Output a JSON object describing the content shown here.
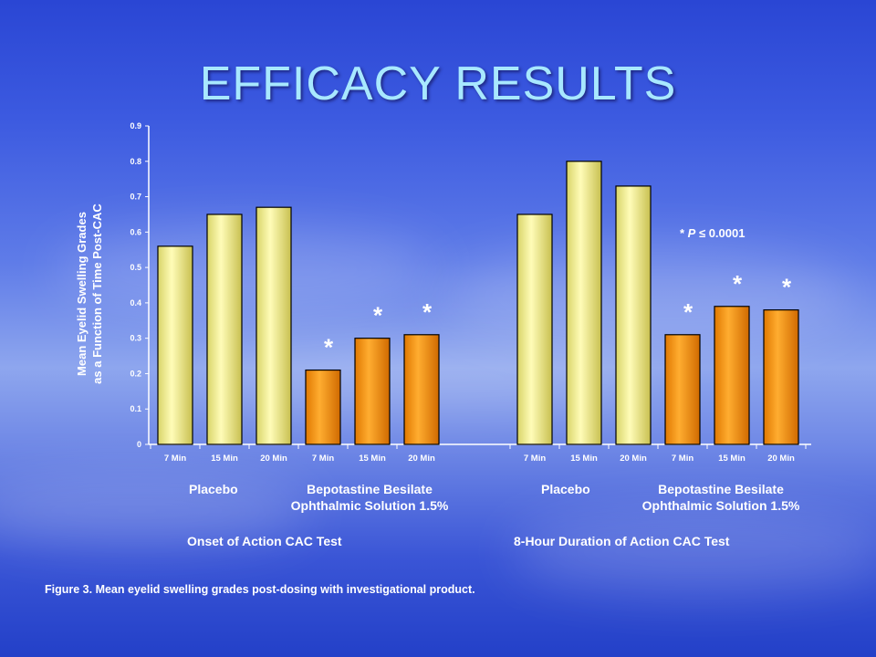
{
  "slide": {
    "title": "EFFICACY RESULTS",
    "caption": "Figure 3.  Mean eyelid swelling grades post-dosing with investigational product.",
    "p_note_prefix": "* ",
    "p_note_symbol": "P",
    "p_note_rest": " ≤ 0.0001",
    "ylabel_line1": "Mean Eyelid Swelling Grades",
    "ylabel_line2": "as a Function of Time Post-CAC",
    "groups": {
      "onset_placebo": "Placebo",
      "onset_drug_line1": "Bepotastine Besilate",
      "onset_drug_line2": "Ophthalmic Solution 1.5%",
      "onset_test": "Onset of Action CAC Test",
      "duration_placebo": "Placebo",
      "duration_drug_line1": "Bepotastine Besilate",
      "duration_drug_line2": "Ophthalmic Solution 1.5%",
      "duration_test": "8-Hour Duration of Action CAC Test"
    }
  },
  "chart_data": {
    "type": "bar",
    "ylim": [
      0,
      0.9
    ],
    "yticks": [
      "0",
      "0.1",
      "0.2",
      "0.3",
      "0.4",
      "0.5",
      "0.6",
      "0.7",
      "0.8",
      "0.9"
    ],
    "grid": false,
    "significance_marker": "*",
    "colors": {
      "placebo": "#f0ec8c",
      "drug": "#ff9a00"
    },
    "bars": [
      {
        "label": "7 Min",
        "value": 0.56,
        "group": "placebo",
        "significant": false
      },
      {
        "label": "15 Min",
        "value": 0.65,
        "group": "placebo",
        "significant": false
      },
      {
        "label": "20 Min",
        "value": 0.67,
        "group": "placebo",
        "significant": false
      },
      {
        "label": "7 Min",
        "value": 0.21,
        "group": "drug",
        "significant": true
      },
      {
        "label": "15 Min",
        "value": 0.3,
        "group": "drug",
        "significant": true
      },
      {
        "label": "20 Min",
        "value": 0.31,
        "group": "drug",
        "significant": true
      },
      {
        "label": "7 Min",
        "value": 0.65,
        "group": "placebo",
        "significant": false
      },
      {
        "label": "15 Min",
        "value": 0.8,
        "group": "placebo",
        "significant": false
      },
      {
        "label": "20 Min",
        "value": 0.73,
        "group": "placebo",
        "significant": false
      },
      {
        "label": "7 Min",
        "value": 0.31,
        "group": "drug",
        "significant": true
      },
      {
        "label": "15 Min",
        "value": 0.39,
        "group": "drug",
        "significant": true
      },
      {
        "label": "20 Min",
        "value": 0.38,
        "group": "drug",
        "significant": true
      }
    ]
  }
}
